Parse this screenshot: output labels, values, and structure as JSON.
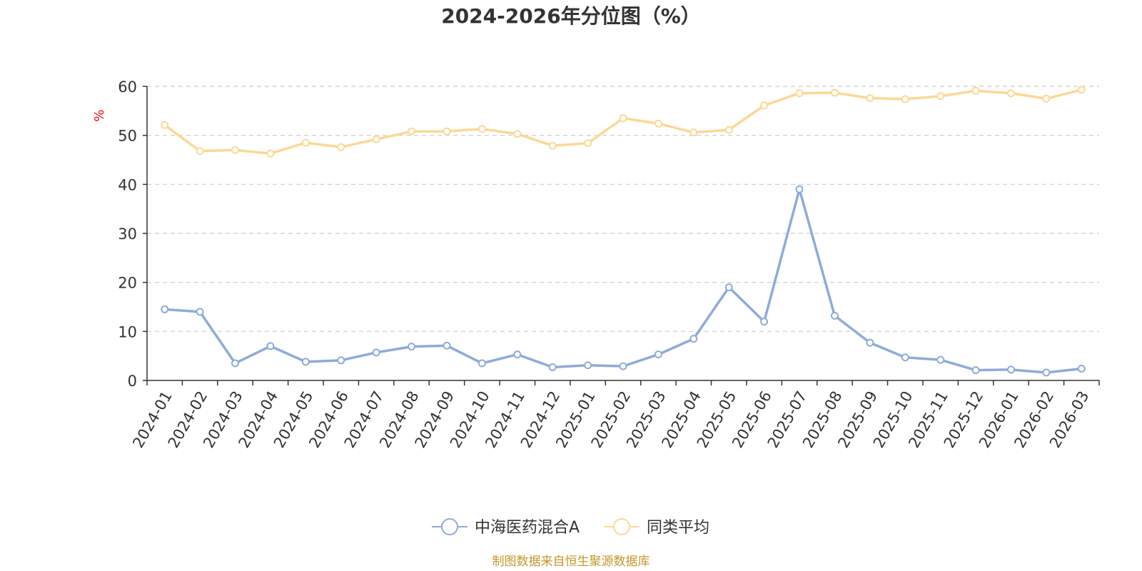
{
  "chart_data": {
    "type": "line",
    "title": "2024-2026年分位图（%）",
    "xlabel": "",
    "ylabel": "%",
    "ylim": [
      0,
      60
    ],
    "yticks": [
      0,
      10,
      20,
      30,
      40,
      50,
      60
    ],
    "grid": true,
    "legend_position": "bottom-center",
    "categories": [
      "2024-01",
      "2024-02",
      "2024-03",
      "2024-04",
      "2024-05",
      "2024-06",
      "2024-07",
      "2024-08",
      "2024-09",
      "2024-10",
      "2024-11",
      "2024-12",
      "2025-01",
      "2025-02",
      "2025-03",
      "2025-04",
      "2025-05",
      "2025-06",
      "2025-07",
      "2025-08",
      "2025-09",
      "2025-10",
      "2025-11",
      "2025-12",
      "2026-01",
      "2026-02",
      "2026-03"
    ],
    "series": [
      {
        "name": "中海医药混合A",
        "color": "#8eabd9",
        "values": [
          14.5,
          14.0,
          3.5,
          7.0,
          3.8,
          4.1,
          5.7,
          6.9,
          7.1,
          3.5,
          5.3,
          2.7,
          3.1,
          2.9,
          5.3,
          8.5,
          19.0,
          12.0,
          39.0,
          13.2,
          7.7,
          4.7,
          4.2,
          2.1,
          2.2,
          1.6,
          2.4
        ]
      },
      {
        "name": "同类平均",
        "color": "#fbd896",
        "values": [
          52.1,
          46.8,
          47.0,
          46.3,
          48.5,
          47.6,
          49.2,
          50.8,
          50.8,
          51.3,
          50.3,
          47.9,
          48.4,
          53.5,
          52.4,
          50.6,
          51.1,
          56.1,
          58.6,
          58.7,
          57.6,
          57.4,
          58.0,
          59.1,
          58.6,
          57.5,
          59.3
        ]
      }
    ],
    "source_note": "制图数据来自恒生聚源数据库"
  }
}
